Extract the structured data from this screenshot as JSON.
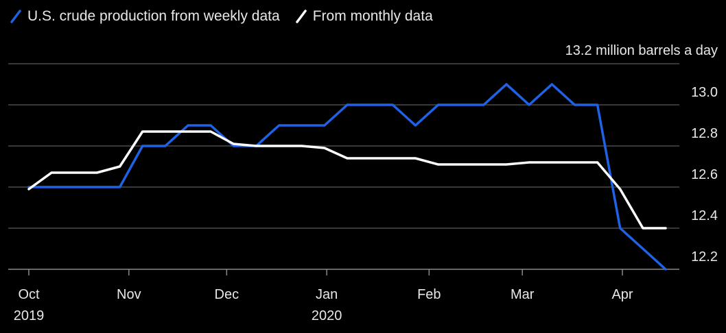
{
  "chart_data": {
    "type": "line",
    "unit_label": "13.2 million barrels a day",
    "ylim": [
      12.2,
      13.2
    ],
    "y_ticks": [
      12.2,
      12.4,
      12.6,
      12.8,
      13.0
    ],
    "y_tick_labels": [
      "12.2",
      "12.4",
      "12.6",
      "12.8",
      "13.0"
    ],
    "x_ticks": [
      {
        "week": 0,
        "label": "Oct",
        "label2": "2019"
      },
      {
        "week": 4.4,
        "label": "Nov",
        "label2": ""
      },
      {
        "week": 8.7,
        "label": "Dec",
        "label2": ""
      },
      {
        "week": 13.1,
        "label": "Jan",
        "label2": "2020"
      },
      {
        "week": 17.6,
        "label": "Feb",
        "label2": ""
      },
      {
        "week": 21.7,
        "label": "Mar",
        "label2": ""
      },
      {
        "week": 26.1,
        "label": "Apr",
        "label2": ""
      }
    ],
    "grid": true,
    "legend_position": "top-left",
    "series": [
      {
        "name": "U.S. crude production from weekly data",
        "color": "#1f62e6",
        "points": [
          [
            0,
            12.6
          ],
          [
            1,
            12.6
          ],
          [
            2,
            12.6
          ],
          [
            3,
            12.6
          ],
          [
            4,
            12.6
          ],
          [
            5,
            12.8
          ],
          [
            6,
            12.8
          ],
          [
            7,
            12.9
          ],
          [
            8,
            12.9
          ],
          [
            9,
            12.8
          ],
          [
            10,
            12.8
          ],
          [
            11,
            12.9
          ],
          [
            12,
            12.9
          ],
          [
            13,
            12.9
          ],
          [
            14,
            13.0
          ],
          [
            15,
            13.0
          ],
          [
            16,
            13.0
          ],
          [
            17,
            12.9
          ],
          [
            18,
            13.0
          ],
          [
            19,
            13.0
          ],
          [
            20,
            13.0
          ],
          [
            21,
            13.1
          ],
          [
            22,
            13.0
          ],
          [
            23,
            13.1
          ],
          [
            24,
            13.0
          ],
          [
            25,
            13.0
          ],
          [
            26,
            12.4
          ],
          [
            27,
            12.3
          ],
          [
            28,
            12.2
          ]
        ]
      },
      {
        "name": "From monthly data",
        "color": "#ffffff",
        "points": [
          [
            0,
            12.59
          ],
          [
            1,
            12.67
          ],
          [
            2,
            12.67
          ],
          [
            3,
            12.67
          ],
          [
            4,
            12.7
          ],
          [
            5,
            12.87
          ],
          [
            6,
            12.87
          ],
          [
            7,
            12.87
          ],
          [
            8,
            12.87
          ],
          [
            9,
            12.81
          ],
          [
            10,
            12.8
          ],
          [
            11,
            12.8
          ],
          [
            12,
            12.8
          ],
          [
            13,
            12.79
          ],
          [
            14,
            12.74
          ],
          [
            15,
            12.74
          ],
          [
            16,
            12.74
          ],
          [
            17,
            12.74
          ],
          [
            18,
            12.71
          ],
          [
            19,
            12.71
          ],
          [
            20,
            12.71
          ],
          [
            21,
            12.71
          ],
          [
            22,
            12.72
          ],
          [
            23,
            12.72
          ],
          [
            24,
            12.72
          ],
          [
            25,
            12.72
          ],
          [
            26,
            12.59
          ],
          [
            27,
            12.4
          ],
          [
            28,
            12.4
          ]
        ]
      }
    ]
  }
}
